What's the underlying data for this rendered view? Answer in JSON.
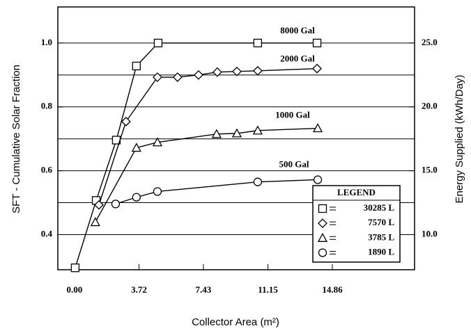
{
  "chart_data": {
    "type": "line",
    "xlabel": "Collector Area (m²)",
    "ylabel": "SFT - Cumulative Solar Fraction",
    "y2label": "Energy Supplied (kWh/Day)",
    "xlim": [
      -0.96,
      19.6
    ],
    "ylim": [
      0.29,
      1.113
    ],
    "y2lim": [
      7.25,
      27.825
    ],
    "xticks": [
      {
        "value": 0,
        "label": "0.00"
      },
      3.72,
      7.43,
      11.15,
      14.86
    ],
    "yticks": [
      {
        "value": 0.4,
        "label": "0.4"
      },
      {
        "value": 0.6,
        "label": "0.6"
      },
      {
        "value": 0.8,
        "label": "0.8"
      },
      {
        "value": 1.0,
        "label": "1.0"
      }
    ],
    "yminor": [
      0.5,
      0.7,
      0.9
    ],
    "y2ticks": [
      {
        "value": 10,
        "label": "10.0"
      },
      {
        "value": 15,
        "label": "15.0"
      },
      {
        "value": 20,
        "label": "20.0"
      },
      {
        "value": 25,
        "label": "25.0"
      }
    ],
    "grid": true,
    "legend_title": "LEGEND",
    "series": [
      {
        "name": "30285 L",
        "label": "8000 Gal",
        "marker": "square",
        "color": "#000000",
        "x": [
          0.04,
          1.25,
          2.41,
          3.57,
          4.82,
          10.56,
          13.98
        ],
        "values": [
          0.296,
          0.507,
          0.696,
          0.928,
          1.0,
          1.0,
          1.0
        ]
      },
      {
        "name": "7570 L",
        "label": "2000 Gal",
        "marker": "diamond",
        "color": "#000000",
        "x": [
          1.41,
          2.97,
          4.78,
          5.94,
          7.15,
          8.23,
          9.36,
          10.56,
          13.98
        ],
        "values": [
          0.493,
          0.754,
          0.893,
          0.893,
          0.9,
          0.909,
          0.911,
          0.913,
          0.92
        ]
      },
      {
        "name": "3785 L",
        "label": "1000 Gal",
        "marker": "triangle",
        "color": "#000000",
        "x": [
          1.2,
          3.57,
          4.78,
          8.19,
          9.36,
          10.56,
          14.02
        ],
        "values": [
          0.439,
          0.672,
          0.689,
          0.715,
          0.717,
          0.726,
          0.733
        ]
      },
      {
        "name": "1890 L",
        "label": "500 Gal",
        "marker": "circle",
        "color": "#000000",
        "x": [
          2.37,
          3.57,
          4.78,
          10.56,
          14.02
        ],
        "values": [
          0.496,
          0.517,
          0.535,
          0.565,
          0.572
        ]
      }
    ]
  }
}
